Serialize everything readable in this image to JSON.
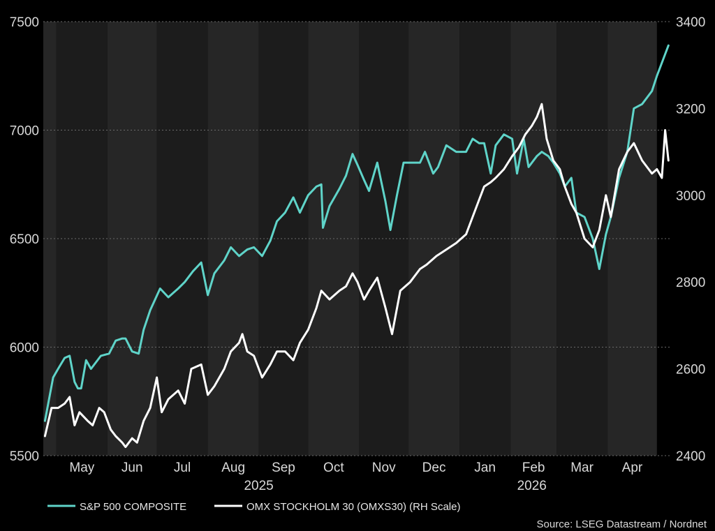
{
  "chart_data": {
    "type": "line",
    "x_axis": {
      "month_labels": [
        "May",
        "Jun",
        "Jul",
        "Aug",
        "Sep",
        "Oct",
        "Nov",
        "Dec",
        "Jan",
        "Feb",
        "Mar",
        "Apr"
      ],
      "year_labels": [
        "2025",
        "2026"
      ]
    },
    "y_left": {
      "ylim": [
        5500,
        7500
      ],
      "ticks": [
        "7500",
        "7000",
        "6500",
        "6000",
        "5500"
      ]
    },
    "y_right": {
      "ylim": [
        2400,
        3400
      ],
      "ticks": [
        "3400",
        "3200",
        "3000",
        "2800",
        "2600",
        "2400"
      ]
    },
    "grid": true,
    "legend_position": "bottom-left",
    "series": [
      {
        "name": "S&P 500 COMPOSITE",
        "axis": "left",
        "color": "#5fd4c9",
        "points": [
          [
            "2025-04-24",
            5660
          ],
          [
            "2025-04-29",
            5860
          ],
          [
            "2025-05-02",
            5900
          ],
          [
            "2025-05-06",
            5950
          ],
          [
            "2025-05-09",
            5960
          ],
          [
            "2025-05-12",
            5840
          ],
          [
            "2025-05-14",
            5810
          ],
          [
            "2025-05-16",
            5810
          ],
          [
            "2025-05-19",
            5940
          ],
          [
            "2025-05-22",
            5900
          ],
          [
            "2025-05-28",
            5960
          ],
          [
            "2025-06-02",
            5970
          ],
          [
            "2025-06-06",
            6030
          ],
          [
            "2025-06-10",
            6040
          ],
          [
            "2025-06-12",
            6040
          ],
          [
            "2025-06-16",
            5980
          ],
          [
            "2025-06-20",
            5970
          ],
          [
            "2025-06-23",
            6080
          ],
          [
            "2025-06-27",
            6170
          ],
          [
            "2025-07-03",
            6270
          ],
          [
            "2025-07-08",
            6230
          ],
          [
            "2025-07-14",
            6270
          ],
          [
            "2025-07-18",
            6300
          ],
          [
            "2025-07-23",
            6350
          ],
          [
            "2025-07-28",
            6390
          ],
          [
            "2025-08-01",
            6240
          ],
          [
            "2025-08-05",
            6340
          ],
          [
            "2025-08-11",
            6400
          ],
          [
            "2025-08-15",
            6460
          ],
          [
            "2025-08-20",
            6420
          ],
          [
            "2025-08-25",
            6450
          ],
          [
            "2025-08-29",
            6460
          ],
          [
            "2025-09-03",
            6420
          ],
          [
            "2025-09-08",
            6490
          ],
          [
            "2025-09-12",
            6580
          ],
          [
            "2025-09-17",
            6620
          ],
          [
            "2025-09-22",
            6690
          ],
          [
            "2025-09-26",
            6620
          ],
          [
            "2025-10-01",
            6700
          ],
          [
            "2025-10-06",
            6740
          ],
          [
            "2025-10-09",
            6750
          ],
          [
            "2025-10-10",
            6550
          ],
          [
            "2025-10-14",
            6650
          ],
          [
            "2025-10-20",
            6730
          ],
          [
            "2025-10-24",
            6790
          ],
          [
            "2025-10-28",
            6890
          ],
          [
            "2025-10-31",
            6840
          ],
          [
            "2025-11-04",
            6770
          ],
          [
            "2025-11-07",
            6720
          ],
          [
            "2025-11-12",
            6850
          ],
          [
            "2025-11-17",
            6670
          ],
          [
            "2025-11-20",
            6540
          ],
          [
            "2025-11-24",
            6700
          ],
          [
            "2025-11-28",
            6850
          ],
          [
            "2025-12-03",
            6850
          ],
          [
            "2025-12-08",
            6850
          ],
          [
            "2025-12-11",
            6900
          ],
          [
            "2025-12-16",
            6800
          ],
          [
            "2025-12-19",
            6830
          ],
          [
            "2025-12-24",
            6930
          ],
          [
            "2025-12-30",
            6900
          ],
          [
            "2026-01-05",
            6900
          ],
          [
            "2026-01-09",
            6960
          ],
          [
            "2026-01-13",
            6940
          ],
          [
            "2026-01-16",
            6940
          ],
          [
            "2026-01-20",
            6800
          ],
          [
            "2026-01-23",
            6930
          ],
          [
            "2026-01-28",
            6980
          ],
          [
            "2026-02-02",
            6960
          ],
          [
            "2026-02-05",
            6800
          ],
          [
            "2026-02-09",
            6960
          ],
          [
            "2026-02-12",
            6830
          ],
          [
            "2026-02-17",
            6880
          ],
          [
            "2026-02-20",
            6900
          ],
          [
            "2026-02-24",
            6880
          ],
          [
            "2026-02-27",
            6850
          ],
          [
            "2026-03-03",
            6800
          ],
          [
            "2026-03-06",
            6740
          ],
          [
            "2026-03-10",
            6780
          ],
          [
            "2026-03-13",
            6620
          ],
          [
            "2026-03-18",
            6600
          ],
          [
            "2026-03-23",
            6500
          ],
          [
            "2026-03-27",
            6360
          ],
          [
            "2026-03-31",
            6520
          ],
          [
            "2026-04-03",
            6600
          ],
          [
            "2026-04-08",
            6780
          ],
          [
            "2026-04-13",
            6900
          ],
          [
            "2026-04-17",
            7100
          ],
          [
            "2026-04-22",
            7120
          ],
          [
            "2026-04-28",
            7180
          ],
          [
            "2026-05-01",
            7250
          ],
          [
            "2026-05-06",
            7350
          ],
          [
            "2026-05-08",
            7390
          ]
        ]
      },
      {
        "name": "OMX STOCKHOLM 30 (OMXS30) (RH Scale)",
        "axis": "right",
        "color": "#ffffff",
        "points": [
          [
            "2025-04-24",
            2445
          ],
          [
            "2025-04-28",
            2510
          ],
          [
            "2025-05-02",
            2510
          ],
          [
            "2025-05-06",
            2520
          ],
          [
            "2025-05-09",
            2535
          ],
          [
            "2025-05-12",
            2470
          ],
          [
            "2025-05-15",
            2500
          ],
          [
            "2025-05-20",
            2480
          ],
          [
            "2025-05-23",
            2470
          ],
          [
            "2025-05-27",
            2510
          ],
          [
            "2025-05-30",
            2500
          ],
          [
            "2025-06-03",
            2460
          ],
          [
            "2025-06-06",
            2445
          ],
          [
            "2025-06-10",
            2430
          ],
          [
            "2025-06-12",
            2420
          ],
          [
            "2025-06-16",
            2440
          ],
          [
            "2025-06-19",
            2430
          ],
          [
            "2025-06-23",
            2480
          ],
          [
            "2025-06-27",
            2510
          ],
          [
            "2025-07-01",
            2580
          ],
          [
            "2025-07-04",
            2500
          ],
          [
            "2025-07-08",
            2530
          ],
          [
            "2025-07-14",
            2550
          ],
          [
            "2025-07-18",
            2520
          ],
          [
            "2025-07-22",
            2600
          ],
          [
            "2025-07-28",
            2610
          ],
          [
            "2025-08-01",
            2540
          ],
          [
            "2025-08-05",
            2560
          ],
          [
            "2025-08-11",
            2600
          ],
          [
            "2025-08-15",
            2640
          ],
          [
            "2025-08-20",
            2660
          ],
          [
            "2025-08-22",
            2680
          ],
          [
            "2025-08-25",
            2640
          ],
          [
            "2025-08-29",
            2630
          ],
          [
            "2025-09-03",
            2580
          ],
          [
            "2025-09-08",
            2610
          ],
          [
            "2025-09-12",
            2640
          ],
          [
            "2025-09-17",
            2640
          ],
          [
            "2025-09-22",
            2620
          ],
          [
            "2025-09-26",
            2660
          ],
          [
            "2025-10-01",
            2690
          ],
          [
            "2025-10-06",
            2740
          ],
          [
            "2025-10-09",
            2780
          ],
          [
            "2025-10-14",
            2760
          ],
          [
            "2025-10-20",
            2780
          ],
          [
            "2025-10-24",
            2790
          ],
          [
            "2025-10-28",
            2820
          ],
          [
            "2025-10-31",
            2800
          ],
          [
            "2025-11-04",
            2760
          ],
          [
            "2025-11-07",
            2780
          ],
          [
            "2025-11-12",
            2810
          ],
          [
            "2025-11-17",
            2740
          ],
          [
            "2025-11-21",
            2680
          ],
          [
            "2025-11-26",
            2780
          ],
          [
            "2025-12-02",
            2800
          ],
          [
            "2025-12-08",
            2830
          ],
          [
            "2025-12-12",
            2840
          ],
          [
            "2025-12-18",
            2860
          ],
          [
            "2025-12-22",
            2870
          ],
          [
            "2025-12-30",
            2890
          ],
          [
            "2026-01-05",
            2910
          ],
          [
            "2026-01-09",
            2950
          ],
          [
            "2026-01-13",
            2990
          ],
          [
            "2026-01-16",
            3020
          ],
          [
            "2026-01-20",
            3030
          ],
          [
            "2026-01-23",
            3040
          ],
          [
            "2026-01-28",
            3060
          ],
          [
            "2026-02-02",
            3090
          ],
          [
            "2026-02-06",
            3110
          ],
          [
            "2026-02-10",
            3140
          ],
          [
            "2026-02-14",
            3160
          ],
          [
            "2026-02-17",
            3180
          ],
          [
            "2026-02-20",
            3210
          ],
          [
            "2026-02-23",
            3130
          ],
          [
            "2026-02-27",
            3080
          ],
          [
            "2026-03-03",
            3060
          ],
          [
            "2026-03-06",
            3020
          ],
          [
            "2026-03-10",
            2980
          ],
          [
            "2026-03-13",
            2960
          ],
          [
            "2026-03-18",
            2900
          ],
          [
            "2026-03-23",
            2880
          ],
          [
            "2026-03-27",
            2920
          ],
          [
            "2026-03-31",
            3000
          ],
          [
            "2026-04-03",
            2950
          ],
          [
            "2026-04-08",
            3060
          ],
          [
            "2026-04-13",
            3100
          ],
          [
            "2026-04-17",
            3120
          ],
          [
            "2026-04-22",
            3080
          ],
          [
            "2026-04-28",
            3050
          ],
          [
            "2026-05-01",
            3060
          ],
          [
            "2026-05-04",
            3040
          ],
          [
            "2026-05-06",
            3150
          ],
          [
            "2026-05-08",
            3080
          ]
        ]
      }
    ],
    "source": "Source: LSEG Datastream / Nordnet"
  }
}
